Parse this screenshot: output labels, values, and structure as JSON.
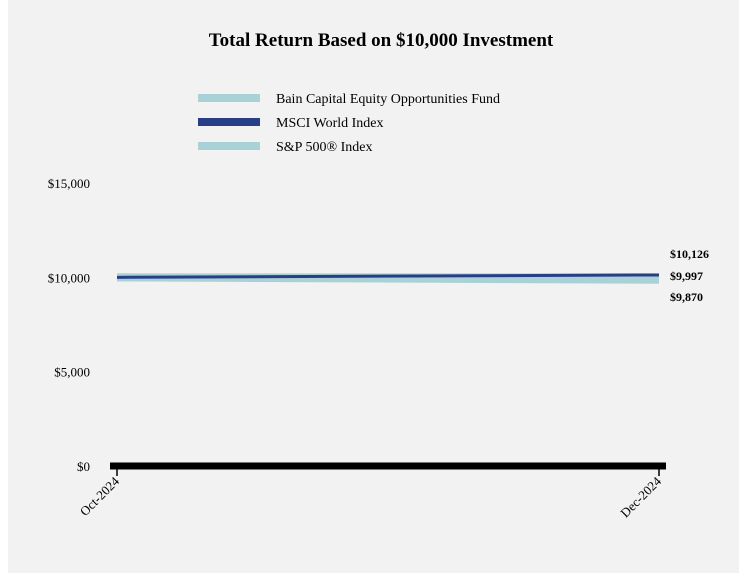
{
  "chart_data": {
    "type": "line",
    "title": "Total Return Based on $10,000 Investment",
    "x": [
      "Oct-2024",
      "Dec-2024"
    ],
    "ylim": [
      0,
      15000
    ],
    "yticks": [
      "$0",
      "$5,000",
      "$10,000",
      "$15,000"
    ],
    "ytick_values": [
      0,
      5000,
      10000,
      15000
    ],
    "grid": false,
    "legend_position": "top",
    "series": [
      {
        "name": "Bain Capital Equity Opportunities Fund",
        "values": [
          10000,
          9870
        ],
        "color": "#a9d1d6",
        "label": "$9,870"
      },
      {
        "name": "MSCI World Index",
        "values": [
          10000,
          10126
        ],
        "color": "#263f86",
        "label": "$10,126"
      },
      {
        "name": "S&P 500® Index",
        "values": [
          10000,
          9997
        ],
        "color": "#a9d1d6",
        "label": "$9,997"
      }
    ]
  }
}
